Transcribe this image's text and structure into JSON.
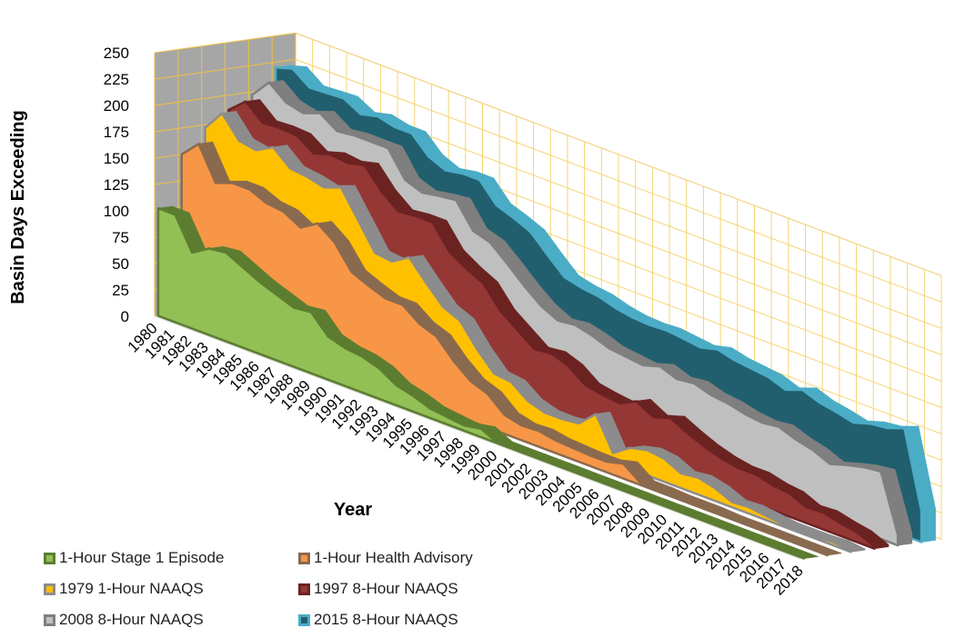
{
  "chart_data": {
    "type": "area",
    "title": "",
    "xlabel": "Year",
    "ylabel": "Basin Days Exceeding",
    "ylim": [
      0,
      250
    ],
    "yticks": [
      0,
      25,
      50,
      75,
      100,
      125,
      150,
      175,
      200,
      225,
      250
    ],
    "grid": true,
    "legend_position": "bottom-left",
    "categories": [
      "1980",
      "1981",
      "1982",
      "1983",
      "1984",
      "1985",
      "1986",
      "1987",
      "1988",
      "1989",
      "1990",
      "1991",
      "1992",
      "1993",
      "1994",
      "1995",
      "1996",
      "1997",
      "1998",
      "1999",
      "2000",
      "2001",
      "2002",
      "2003",
      "2004",
      "2005",
      "2006",
      "2007",
      "2008",
      "2009",
      "2010",
      "2011",
      "2012",
      "2013",
      "2014",
      "2015",
      "2016",
      "2017",
      "2018"
    ],
    "series": [
      {
        "name": "1-Hour Stage 1 Episode",
        "fill": "#92c055",
        "edge": "#5c7d30",
        "values": [
          102,
          102,
          72,
          82,
          84,
          76,
          68,
          62,
          56,
          58,
          41,
          36,
          34,
          29,
          19,
          15,
          9,
          7,
          5,
          8,
          0,
          0,
          0,
          0,
          0,
          0,
          0,
          0,
          0,
          0,
          0,
          0,
          0,
          0,
          0,
          0,
          0,
          0,
          0
        ]
      },
      {
        "name": "1-Hour Health Advisory",
        "fill": "#f79646",
        "edge": "#8a6a4e",
        "values": [
          150,
          166,
          135,
          141,
          141,
          134,
          132,
          123,
          133,
          121,
          99,
          92,
          86,
          86,
          74,
          68,
          51,
          38,
          32,
          18,
          14,
          15,
          12,
          11,
          10,
          10,
          14,
          2,
          2,
          1,
          1,
          1,
          0,
          0,
          0,
          0,
          0,
          0,
          0
        ]
      },
      {
        "name": "1979 1-Hour NAAQS",
        "fill": "#ffc000",
        "edge": "#8c8c8c",
        "values": [
          172,
          192,
          172,
          169,
          178,
          164,
          162,
          158,
          164,
          139,
          114,
          112,
          122,
          104,
          87,
          80,
          59,
          42,
          40,
          28,
          23,
          23,
          25,
          40,
          9,
          20,
          24,
          22,
          14,
          16,
          12,
          5,
          6,
          4,
          2,
          2,
          2,
          3,
          1
        ]
      },
      {
        "name": "1997 8-Hour NAAQS",
        "fill": "#953735",
        "edge": "#6b2322",
        "values": [
          186,
          200,
          186,
          187,
          186,
          175,
          180,
          178,
          182,
          163,
          150,
          152,
          152,
          130,
          120,
          112,
          92,
          80,
          68,
          70,
          64,
          52,
          49,
          47,
          55,
          46,
          51,
          43,
          36,
          31,
          28,
          28,
          24,
          22,
          15,
          16,
          12,
          9,
          2
        ]
      },
      {
        "name": "2008 8-Hour NAAQS",
        "fill": "#bfbfbf",
        "edge": "#7f7f7f",
        "values": [
          197,
          215,
          202,
          198,
          204,
          193,
          195,
          195,
          195,
          171,
          165,
          168,
          170,
          147,
          142,
          128,
          113,
          100,
          92,
          94,
          90,
          84,
          82,
          80,
          85,
          79,
          81,
          76,
          74,
          70,
          68,
          70,
          64,
          60,
          53,
          58,
          62,
          64,
          10
        ]
      },
      {
        "name": "2015 8-Hour NAAQS",
        "fill": "#215f6f",
        "edge": "#4bacc6",
        "values": [
          220,
          225,
          213,
          214,
          215,
          206,
          210,
          206,
          206,
          190,
          183,
          186,
          186,
          168,
          162,
          155,
          139,
          124,
          120,
          118,
          113,
          110,
          109,
          110,
          108,
          106,
          110,
          106,
          104,
          102,
          96,
          102,
          96,
          93,
          89,
          94,
          96,
          102,
          30
        ]
      }
    ]
  }
}
